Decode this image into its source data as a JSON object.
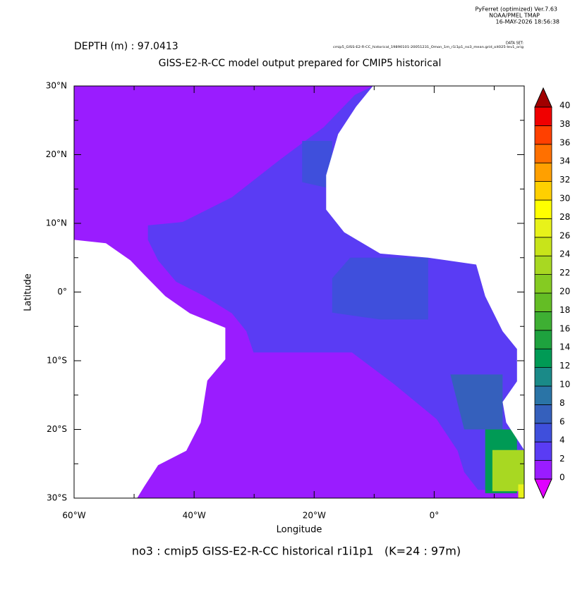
{
  "chart_data": {
    "type": "map",
    "header": [
      "PyFerret (optimized) Ver.7.63",
      "NOAA/PMEL TMAP",
      "16-MAY-2026 18:56:38"
    ],
    "depth_label": "DEPTH (m) : 97.0413",
    "dataset_label": "DATA SET:",
    "dataset": "cmip5_GISS-E2-R-CC_historical_19890101-20051231_Omon_1m_r1i1p1_no3_mean.grid_oit025-lev1_orig",
    "title": "GISS-E2-R-CC model output prepared for CMIP5 historical",
    "x_label": "Longitude",
    "y_label": "Latitude",
    "footer": "no3 : cmip5 GISS-E2-R-CC historical r1i1p1   (K=24 : 97m)",
    "xlim": [
      -60,
      15
    ],
    "ylim": [
      -30,
      30
    ],
    "xticks": [
      {
        "value": -60,
        "label": "60°W"
      },
      {
        "value": -40,
        "label": "40°W"
      },
      {
        "value": -20,
        "label": "20°W"
      },
      {
        "value": 0,
        "label": "0°"
      }
    ],
    "xminor": [
      -50,
      -30,
      -10,
      10
    ],
    "yticks": [
      {
        "value": 30,
        "label": "30°N"
      },
      {
        "value": 20,
        "label": "20°N"
      },
      {
        "value": 10,
        "label": "10°N"
      },
      {
        "value": 0,
        "label": "0°"
      },
      {
        "value": -10,
        "label": "10°S"
      },
      {
        "value": -20,
        "label": "20°S"
      },
      {
        "value": -30,
        "label": "30°S"
      }
    ],
    "yminor": [
      25,
      15,
      5,
      -5,
      -15,
      -25
    ],
    "levels": [
      0,
      2,
      4,
      6,
      8,
      10,
      12,
      14,
      16,
      18,
      20,
      22,
      24,
      26,
      28,
      30,
      32,
      34,
      36,
      38,
      40
    ],
    "colors": [
      "#9a1cff",
      "#5a3cf4",
      "#3f4fdc",
      "#3560bc",
      "#2a74a6",
      "#1a8a88",
      "#009a55",
      "#1ea23e",
      "#3eaf33",
      "#64bd25",
      "#85cb22",
      "#a8d822",
      "#c8e41a",
      "#e8f21a",
      "#ffff00",
      "#ffd000",
      "#ffa000",
      "#ff7000",
      "#ff4000",
      "#f00000"
    ],
    "under_color": "#e000ff",
    "over_color": "#a00000",
    "background_value": 1,
    "regions": [
      {
        "value": 3,
        "lon": [
          -13.2,
          -18.4,
          -25.5,
          -33.7,
          -41.9,
          -47.7,
          -47.7,
          -46,
          -43,
          -38.3,
          -33.7,
          -31.3,
          -30.1,
          -13.7,
          -6.7,
          0.4,
          3.9,
          5,
          7.3,
          15,
          15,
          -10.2
        ],
        "lat": [
          28.7,
          24,
          19.4,
          13.8,
          10.2,
          9.7,
          7.6,
          4.6,
          1.5,
          -0.6,
          -3.1,
          -5.7,
          -8.8,
          -8.8,
          -13.4,
          -18.5,
          -23.1,
          -26.2,
          -28.8,
          -28.8,
          30,
          30
        ]
      },
      {
        "value": 5,
        "lon": [
          -17,
          -14,
          -1,
          -1,
          -9,
          -17
        ],
        "lat": [
          2,
          5,
          5,
          -4,
          -4,
          -3
        ]
      },
      {
        "value": 5,
        "lon": [
          -22,
          -17,
          -17,
          -22
        ],
        "lat": [
          22,
          22,
          15,
          16
        ]
      },
      {
        "value": 7,
        "lon": [
          2.7,
          11.4,
          11.4,
          5
        ],
        "lat": [
          -12,
          -12,
          -20,
          -20
        ]
      },
      {
        "value": 13,
        "lon": [
          8.5,
          13.8,
          13.8,
          8.5
        ],
        "lat": [
          -20,
          -20,
          -29.3,
          -29.3
        ]
      },
      {
        "value": 23,
        "lon": [
          9.7,
          15,
          15,
          9.7
        ],
        "lat": [
          -23,
          -23,
          -29,
          -29
        ]
      },
      {
        "value": 27,
        "lon": [
          14,
          15,
          15,
          14
        ],
        "lat": [
          -28,
          -28,
          -30,
          -30
        ]
      }
    ],
    "land": [
      {
        "lon": [
          -10.2,
          -13,
          -16,
          -18,
          -18,
          -15,
          -9,
          -1,
          7,
          8.5,
          11.4,
          13.8,
          13.8,
          11.4,
          12,
          15,
          15
        ],
        "lat": [
          30,
          27,
          23,
          17,
          12,
          8.7,
          5.6,
          5,
          4,
          -0.6,
          -5.7,
          -8.3,
          -13,
          -16,
          -19,
          -23,
          30
        ]
      },
      {
        "lon": [
          -60,
          -54.7,
          -50.6,
          -48.3,
          -44.8,
          -40.7,
          -34.8,
          -34.8,
          -37.8,
          -38.9,
          -41.3,
          -46,
          -48.3,
          -49.5,
          -60
        ],
        "lat": [
          7.6,
          7.1,
          4.6,
          2.5,
          -0.6,
          -3.1,
          -5.2,
          -9.8,
          -12.9,
          -19,
          -23.1,
          -25.2,
          -28.3,
          -30,
          -30
        ]
      }
    ]
  }
}
